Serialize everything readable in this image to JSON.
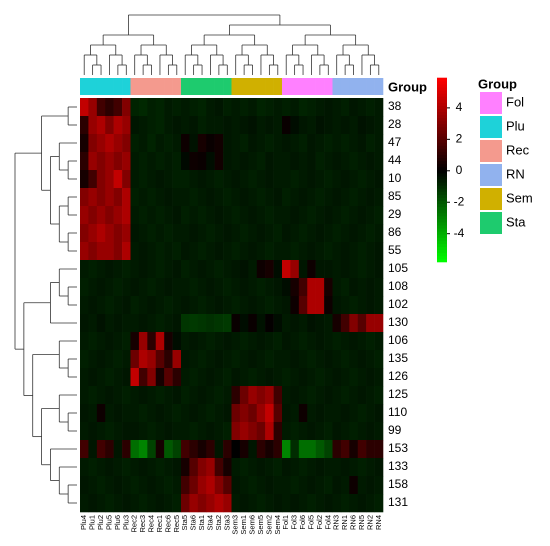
{
  "chart_data": {
    "type": "heatmap",
    "group_label": "Group",
    "columns": [
      "Plu4",
      "Plu1",
      "Plu2",
      "Plu5",
      "Plu6",
      "Plu3",
      "Rec2",
      "Rec3",
      "Rec4",
      "Rec1",
      "Rec6",
      "Rec5",
      "Sta5",
      "Sta6",
      "Sta1",
      "Sta4",
      "Sta2",
      "Sta3",
      "Sem3",
      "Sem1",
      "Sem6",
      "Sem5",
      "Sem2",
      "Sem4",
      "Fol1",
      "Fol3",
      "Fol6",
      "Fol5",
      "Fol2",
      "Fol4",
      "RN3",
      "RN1",
      "RN6",
      "RN5",
      "RN2",
      "RN4"
    ],
    "rows": [
      "38",
      "28",
      "47",
      "44",
      "10",
      "85",
      "29",
      "86",
      "55",
      "105",
      "108",
      "102",
      "130",
      "106",
      "135",
      "126",
      "125",
      "110",
      "99",
      "153",
      "133",
      "158",
      "131"
    ],
    "values": [
      [
        4.5,
        3.5,
        1.5,
        1.0,
        1.5,
        3.0,
        -0.8,
        -0.9,
        -0.7,
        -0.8,
        -0.6,
        -0.7,
        -0.6,
        -0.7,
        -0.8,
        -0.6,
        -0.5,
        -0.7,
        -0.6,
        -0.7,
        -0.6,
        -0.8,
        -0.7,
        -0.6,
        -0.7,
        -0.6,
        -0.8,
        -0.7,
        -0.6,
        -0.5,
        -0.6,
        -0.7,
        -0.5,
        -0.6,
        -0.7,
        -0.6
      ],
      [
        1.0,
        3.5,
        4.0,
        3.0,
        4.0,
        3.5,
        -0.5,
        -0.6,
        -0.7,
        -0.8,
        -0.6,
        -0.5,
        -0.6,
        -0.5,
        -0.7,
        -0.6,
        -0.6,
        -0.5,
        -0.6,
        -0.5,
        -0.4,
        -0.6,
        -0.5,
        -0.6,
        0.2,
        -0.3,
        -0.5,
        -0.6,
        -0.4,
        -0.5,
        -0.6,
        -0.5,
        -0.6,
        -0.4,
        -0.5,
        -0.6
      ],
      [
        0.5,
        3.0,
        3.5,
        4.0,
        3.5,
        3.0,
        -0.7,
        -0.6,
        -0.8,
        -0.6,
        -0.7,
        -0.6,
        0.3,
        -0.4,
        0.5,
        0.2,
        0.4,
        -0.5,
        -0.6,
        -0.7,
        -0.5,
        -0.6,
        -0.7,
        -0.6,
        -0.5,
        -0.6,
        -0.7,
        -0.5,
        -0.6,
        -0.7,
        -0.6,
        -0.7,
        -0.6,
        -0.5,
        -0.7,
        -0.6
      ],
      [
        1.0,
        3.5,
        3.0,
        3.5,
        3.0,
        3.5,
        -0.6,
        -0.7,
        -0.6,
        -0.7,
        -0.6,
        -0.7,
        -0.2,
        0.3,
        0.2,
        -0.3,
        0.4,
        -0.5,
        -0.6,
        -0.5,
        -0.6,
        -0.7,
        -0.5,
        -0.6,
        -0.6,
        -0.5,
        -0.6,
        -0.5,
        -0.7,
        -0.6,
        -0.5,
        -0.6,
        -0.7,
        -0.6,
        -0.5,
        -0.6
      ],
      [
        0.5,
        1.5,
        3.0,
        3.5,
        4.5,
        3.0,
        -0.6,
        -0.7,
        -0.6,
        -0.5,
        -0.6,
        -0.7,
        -0.7,
        -0.6,
        -0.5,
        -0.6,
        -0.7,
        -0.6,
        -0.5,
        -0.6,
        -0.7,
        -0.6,
        -0.5,
        -0.6,
        -0.6,
        -0.7,
        -0.6,
        -0.5,
        -0.6,
        -0.7,
        -0.6,
        -0.5,
        -0.6,
        -0.7,
        -0.6,
        -0.5
      ],
      [
        3.0,
        3.5,
        3.0,
        3.5,
        3.0,
        4.0,
        -0.7,
        -0.6,
        -0.7,
        -0.6,
        -0.5,
        -0.6,
        -0.6,
        -0.7,
        -0.6,
        -0.5,
        -0.6,
        -0.7,
        -0.6,
        -0.5,
        -0.6,
        -0.7,
        -0.6,
        -0.5,
        -0.7,
        -0.6,
        -0.5,
        -0.6,
        -0.7,
        -0.6,
        -0.5,
        -0.6,
        -0.7,
        -0.6,
        -0.5,
        -0.6
      ],
      [
        3.5,
        3.0,
        3.5,
        3.0,
        3.5,
        4.0,
        -0.6,
        -0.7,
        -0.6,
        -0.7,
        -0.6,
        -0.5,
        -0.7,
        -0.6,
        -0.7,
        -0.6,
        -0.5,
        -0.6,
        -0.7,
        -0.6,
        -0.5,
        -0.6,
        -0.7,
        -0.6,
        -0.6,
        -0.5,
        -0.6,
        -0.7,
        -0.6,
        -0.5,
        -0.6,
        -0.7,
        -0.6,
        -0.5,
        -0.6,
        -0.7
      ],
      [
        3.0,
        3.5,
        4.0,
        3.5,
        3.0,
        3.5,
        -0.5,
        -0.6,
        -0.7,
        -0.6,
        -0.7,
        -0.6,
        -0.6,
        -0.5,
        -0.6,
        -0.7,
        -0.6,
        -0.5,
        -0.6,
        -0.7,
        -0.6,
        -0.5,
        -0.6,
        -0.7,
        -0.5,
        -0.6,
        -0.7,
        -0.6,
        -0.5,
        -0.6,
        -0.7,
        -0.6,
        -0.5,
        -0.6,
        -0.7,
        -0.6
      ],
      [
        3.5,
        3.0,
        3.5,
        3.5,
        3.0,
        4.0,
        -0.6,
        -0.5,
        -0.6,
        -0.7,
        -0.6,
        -0.7,
        -0.5,
        -0.6,
        -0.7,
        -0.6,
        -0.5,
        -0.6,
        -0.7,
        -0.6,
        -0.5,
        -0.6,
        -0.7,
        -0.6,
        -0.6,
        -0.7,
        -0.6,
        -0.5,
        -0.6,
        -0.7,
        -0.6,
        -0.5,
        -0.6,
        -0.7,
        -0.6,
        -0.5
      ],
      [
        -0.6,
        -0.7,
        -0.6,
        -0.5,
        -0.6,
        -0.7,
        -0.6,
        -0.5,
        -0.6,
        -0.7,
        -0.6,
        -0.5,
        -0.7,
        -0.6,
        -0.5,
        -0.6,
        -0.7,
        -0.6,
        -0.5,
        -0.4,
        -0.6,
        0.3,
        0.5,
        -0.3,
        4.5,
        3.5,
        -0.5,
        0.3,
        -0.5,
        -0.5,
        -0.6,
        -0.5,
        -0.6,
        -0.7,
        -0.6,
        -0.5
      ],
      [
        -0.7,
        -0.6,
        -0.5,
        -0.6,
        -0.7,
        -0.6,
        -0.5,
        -0.6,
        -0.7,
        -0.6,
        -0.5,
        -0.6,
        -0.6,
        -0.7,
        -0.6,
        -0.5,
        -0.6,
        -0.7,
        -0.6,
        -0.5,
        -0.6,
        -0.7,
        -0.6,
        -0.5,
        -0.3,
        0.5,
        1.5,
        4.0,
        4.0,
        0.5,
        -0.6,
        -0.7,
        -0.5,
        -0.6,
        -0.5,
        -0.6
      ],
      [
        -0.6,
        -0.5,
        -0.6,
        -0.7,
        -0.6,
        -0.5,
        -0.7,
        -0.6,
        -0.5,
        -0.6,
        -0.7,
        -0.6,
        -0.5,
        -0.6,
        -0.7,
        -0.6,
        -0.5,
        -0.6,
        -0.7,
        -0.6,
        -0.5,
        -0.6,
        -0.7,
        -0.6,
        -0.5,
        0.3,
        2.0,
        4.0,
        4.0,
        0.3,
        -0.5,
        -0.6,
        -0.7,
        -0.6,
        -0.5,
        -0.6
      ],
      [
        -0.5,
        -0.6,
        -0.4,
        -0.6,
        -0.5,
        -0.6,
        -0.6,
        -0.5,
        -0.6,
        -0.7,
        -0.6,
        -0.5,
        -1.2,
        -1.3,
        -1.2,
        -1.1,
        -1.2,
        -1.3,
        0.2,
        -0.3,
        0.2,
        -0.4,
        0.1,
        -0.3,
        -0.6,
        -0.5,
        -0.6,
        -0.4,
        -0.5,
        -0.6,
        0.5,
        1.5,
        3.0,
        2.0,
        3.5,
        3.5
      ],
      [
        -0.6,
        -0.7,
        -0.6,
        -0.5,
        -0.6,
        -0.7,
        0.5,
        3.5,
        1.0,
        4.0,
        0.5,
        -0.3,
        -0.6,
        -0.5,
        -0.6,
        -0.7,
        -0.6,
        -0.5,
        -0.6,
        -0.7,
        -0.6,
        -0.5,
        -0.6,
        -0.7,
        -0.5,
        -0.6,
        -0.7,
        -0.6,
        -0.5,
        -0.6,
        -0.7,
        -0.6,
        -0.5,
        -0.6,
        -0.7,
        -0.6
      ],
      [
        -0.7,
        -0.6,
        -0.5,
        -0.6,
        -0.7,
        -0.6,
        2.5,
        4.0,
        3.5,
        2.0,
        1.0,
        3.5,
        -0.5,
        -0.6,
        -0.7,
        -0.6,
        -0.5,
        -0.6,
        -0.7,
        -0.6,
        -0.5,
        -0.6,
        -0.7,
        -0.6,
        -0.6,
        -0.5,
        -0.6,
        -0.7,
        -0.6,
        -0.5,
        -0.6,
        -0.7,
        -0.6,
        -0.5,
        -0.6,
        -0.7
      ],
      [
        -0.6,
        -0.5,
        -0.6,
        -0.7,
        -0.6,
        -0.5,
        4.5,
        1.5,
        3.0,
        0.5,
        2.0,
        1.0,
        -0.6,
        -0.7,
        -0.6,
        -0.5,
        -0.6,
        -0.7,
        -0.5,
        -0.6,
        -0.7,
        -0.6,
        -0.5,
        -0.6,
        -0.7,
        -0.6,
        -0.5,
        -0.6,
        -0.7,
        -0.6,
        -0.5,
        -0.6,
        -0.7,
        -0.6,
        -0.5,
        -0.6
      ],
      [
        -0.6,
        -0.7,
        -0.6,
        -0.5,
        -0.6,
        -0.7,
        -0.6,
        -0.5,
        -0.6,
        -0.7,
        -0.6,
        -0.5,
        -0.7,
        -0.6,
        -0.5,
        -0.6,
        -0.7,
        -0.6,
        1.0,
        2.5,
        3.5,
        3.0,
        3.5,
        1.5,
        -0.6,
        -0.5,
        -0.6,
        -0.7,
        -0.6,
        -0.5,
        -0.6,
        -0.7,
        -0.6,
        -0.5,
        -0.6,
        -0.7
      ],
      [
        -0.5,
        -0.6,
        0.3,
        -0.6,
        -0.5,
        -0.6,
        -0.6,
        -0.7,
        -0.6,
        -0.5,
        -0.6,
        -0.7,
        -0.6,
        -0.5,
        -0.6,
        -0.7,
        -0.6,
        -0.5,
        2.5,
        3.0,
        2.5,
        3.5,
        4.5,
        2.0,
        -0.5,
        -0.6,
        0.3,
        -0.6,
        -0.5,
        -0.6,
        -0.6,
        -0.5,
        -0.6,
        -0.7,
        -0.6,
        -0.5
      ],
      [
        -0.6,
        -0.5,
        -0.6,
        -0.7,
        -0.6,
        -0.5,
        -0.5,
        -0.6,
        -0.7,
        -0.6,
        -0.5,
        -0.6,
        -0.6,
        -0.7,
        -0.6,
        -0.5,
        -0.6,
        -0.7,
        3.0,
        3.5,
        3.0,
        2.5,
        4.0,
        1.0,
        -0.6,
        -0.7,
        -0.6,
        -0.5,
        -0.6,
        -0.7,
        -0.5,
        -0.6,
        -0.7,
        -0.6,
        -0.5,
        -0.6
      ],
      [
        1.5,
        -0.5,
        1.5,
        1.0,
        -0.5,
        1.0,
        -2.5,
        -3.0,
        -1.5,
        0.5,
        -2.0,
        -1.5,
        1.5,
        1.0,
        0.5,
        1.0,
        -0.5,
        1.0,
        0.0,
        0.5,
        -0.5,
        1.0,
        0.5,
        1.0,
        -3.0,
        -1.0,
        -2.5,
        -2.5,
        -2.0,
        -1.5,
        1.0,
        1.5,
        0.5,
        1.5,
        1.0,
        1.0
      ],
      [
        -0.6,
        -0.7,
        -0.6,
        -0.5,
        -0.6,
        -0.7,
        -0.6,
        -0.5,
        -0.6,
        -0.7,
        -0.6,
        -0.5,
        0.5,
        2.0,
        3.0,
        3.5,
        1.5,
        0.5,
        -0.6,
        -0.7,
        -0.6,
        -0.5,
        -0.6,
        -0.7,
        -0.5,
        -0.6,
        -0.7,
        -0.6,
        -0.5,
        -0.6,
        -0.6,
        -0.5,
        -0.6,
        -0.7,
        -0.6,
        -0.5
      ],
      [
        -0.5,
        -0.6,
        -0.7,
        -0.6,
        -0.5,
        -0.6,
        -0.7,
        -0.6,
        -0.5,
        -0.6,
        -0.7,
        -0.6,
        1.5,
        2.5,
        3.5,
        4.0,
        3.0,
        2.0,
        -0.5,
        -0.6,
        -0.7,
        -0.6,
        -0.5,
        -0.6,
        -0.6,
        -0.7,
        -0.6,
        -0.5,
        -0.6,
        -0.7,
        -0.5,
        -0.6,
        0.3,
        -0.6,
        -0.5,
        -0.6
      ],
      [
        -0.6,
        -0.5,
        -0.6,
        -0.7,
        -0.6,
        -0.5,
        -0.6,
        -0.7,
        -0.6,
        -0.5,
        -0.6,
        -0.7,
        2.5,
        3.5,
        3.0,
        3.5,
        4.0,
        3.5,
        -0.6,
        -0.5,
        -0.6,
        -0.7,
        -0.6,
        -0.5,
        -0.6,
        -0.5,
        -0.6,
        -0.7,
        -0.6,
        -0.5,
        -0.6,
        -0.7,
        -0.6,
        -0.5,
        -0.6,
        -0.7
      ]
    ],
    "zlim": [
      -5.8,
      5.9
    ],
    "colorbar_ticks": [
      4,
      2,
      0,
      -2,
      -4
    ],
    "low_color": "#00ff00",
    "mid_color": "#000000",
    "high_color": "#ff0000",
    "groups": [
      {
        "name": "Fol",
        "color": "#ff80ff"
      },
      {
        "name": "Plu",
        "color": "#1ed2d9"
      },
      {
        "name": "Rec",
        "color": "#f49a8e"
      },
      {
        "name": "RN",
        "color": "#91b2ee"
      },
      {
        "name": "Sem",
        "color": "#d0b000"
      },
      {
        "name": "Sta",
        "color": "#1ecb6e"
      }
    ]
  }
}
